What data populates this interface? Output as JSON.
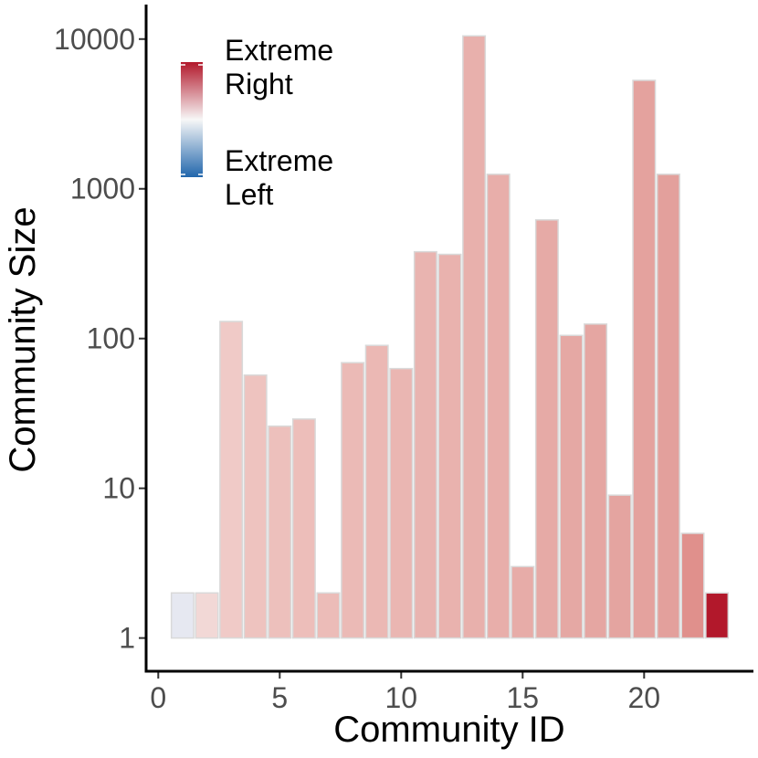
{
  "chart_data": {
    "type": "bar",
    "title": "",
    "xlabel": "Community ID",
    "ylabel": "Community Size",
    "y_scale": "log10",
    "xlim": [
      -0.5,
      24.5
    ],
    "ylim": [
      0.6,
      17000
    ],
    "x_ticks": [
      0,
      5,
      10,
      15,
      20
    ],
    "x_tick_labels": [
      "0",
      "5",
      "10",
      "15",
      "20"
    ],
    "y_ticks": [
      1,
      10,
      100,
      1000,
      10000
    ],
    "y_tick_labels": [
      "1",
      "10",
      "100",
      "1000",
      "10000"
    ],
    "grid": false,
    "bars": [
      {
        "id": 1,
        "size": 2,
        "color": "#e6e8f1"
      },
      {
        "id": 2,
        "size": 2,
        "color": "#f2d8d6"
      },
      {
        "id": 3,
        "size": 130,
        "color": "#f0cac7"
      },
      {
        "id": 4,
        "size": 57,
        "color": "#eec3bf"
      },
      {
        "id": 5,
        "size": 26,
        "color": "#edc0bc"
      },
      {
        "id": 6,
        "size": 29,
        "color": "#edbeba"
      },
      {
        "id": 7,
        "size": 2,
        "color": "#ecbcb8"
      },
      {
        "id": 8,
        "size": 69,
        "color": "#ebbab6"
      },
      {
        "id": 9,
        "size": 90,
        "color": "#ebb8b4"
      },
      {
        "id": 10,
        "size": 63,
        "color": "#eab6b2"
      },
      {
        "id": 11,
        "size": 380,
        "color": "#e9b4b0"
      },
      {
        "id": 12,
        "size": 365,
        "color": "#e9b2ae"
      },
      {
        "id": 13,
        "size": 10500,
        "color": "#e8b0ac"
      },
      {
        "id": 14,
        "size": 1250,
        "color": "#e8aeaa"
      },
      {
        "id": 15,
        "size": 3,
        "color": "#e7aca8"
      },
      {
        "id": 16,
        "size": 620,
        "color": "#e6aaa6"
      },
      {
        "id": 17,
        "size": 105,
        "color": "#e5a8a4"
      },
      {
        "id": 18,
        "size": 125,
        "color": "#e5a6a2"
      },
      {
        "id": 19,
        "size": 9,
        "color": "#e4a4a0"
      },
      {
        "id": 20,
        "size": 5300,
        "color": "#e4a29e"
      },
      {
        "id": 21,
        "size": 1250,
        "color": "#e3a09c"
      },
      {
        "id": 22,
        "size": 5,
        "color": "#e0908c"
      },
      {
        "id": 23,
        "size": 2,
        "color": "#b2182b"
      }
    ],
    "legend": {
      "position": "top-left",
      "type": "colorbar",
      "top_label": "Extreme\nRight",
      "bottom_label": "Extreme\nLeft",
      "top_color": "#b2182b",
      "mid_color": "#f7f7f7",
      "bottom_color": "#2166ac"
    }
  }
}
